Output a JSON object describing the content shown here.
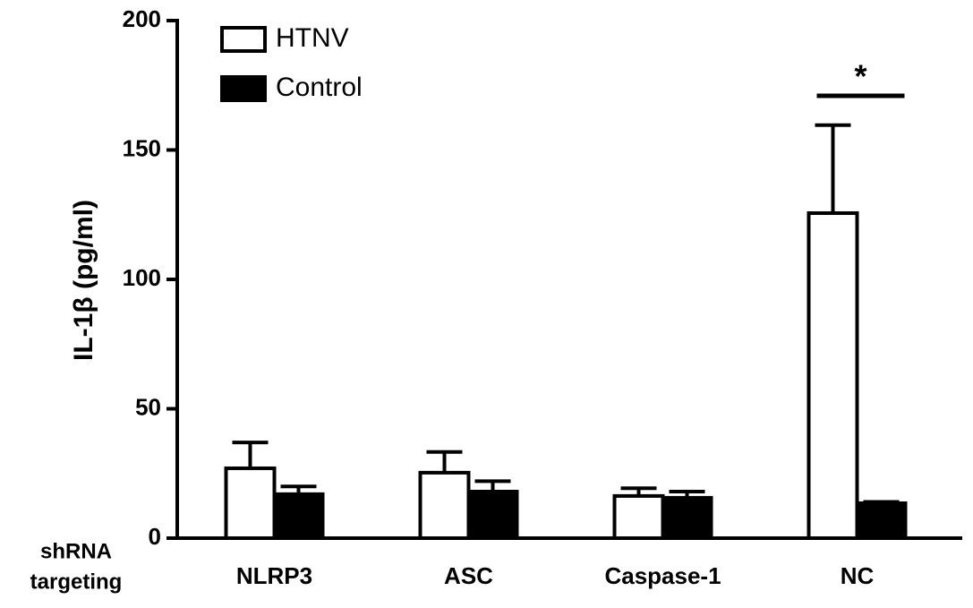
{
  "chart_data": {
    "type": "bar",
    "y_label": "IL-1β (pg/ml)",
    "x_label": [
      "shRNA",
      "targeting"
    ],
    "categories": [
      "NLRP3",
      "ASC",
      "Caspase-1",
      "NC"
    ],
    "series": [
      {
        "name": "HTNV",
        "color": "#ffffff",
        "values": [
          27,
          25.3,
          16.3,
          125.6
        ],
        "error": [
          10,
          8,
          3,
          34
        ]
      },
      {
        "name": "Control",
        "color": "#000000",
        "values": [
          17,
          18,
          15.6,
          13.5
        ],
        "error": [
          3,
          4,
          2.4,
          0.5
        ]
      }
    ],
    "ylim": [
      0,
      200
    ],
    "yticks": [
      0,
      50,
      100,
      150,
      200
    ],
    "annotation": "*"
  }
}
